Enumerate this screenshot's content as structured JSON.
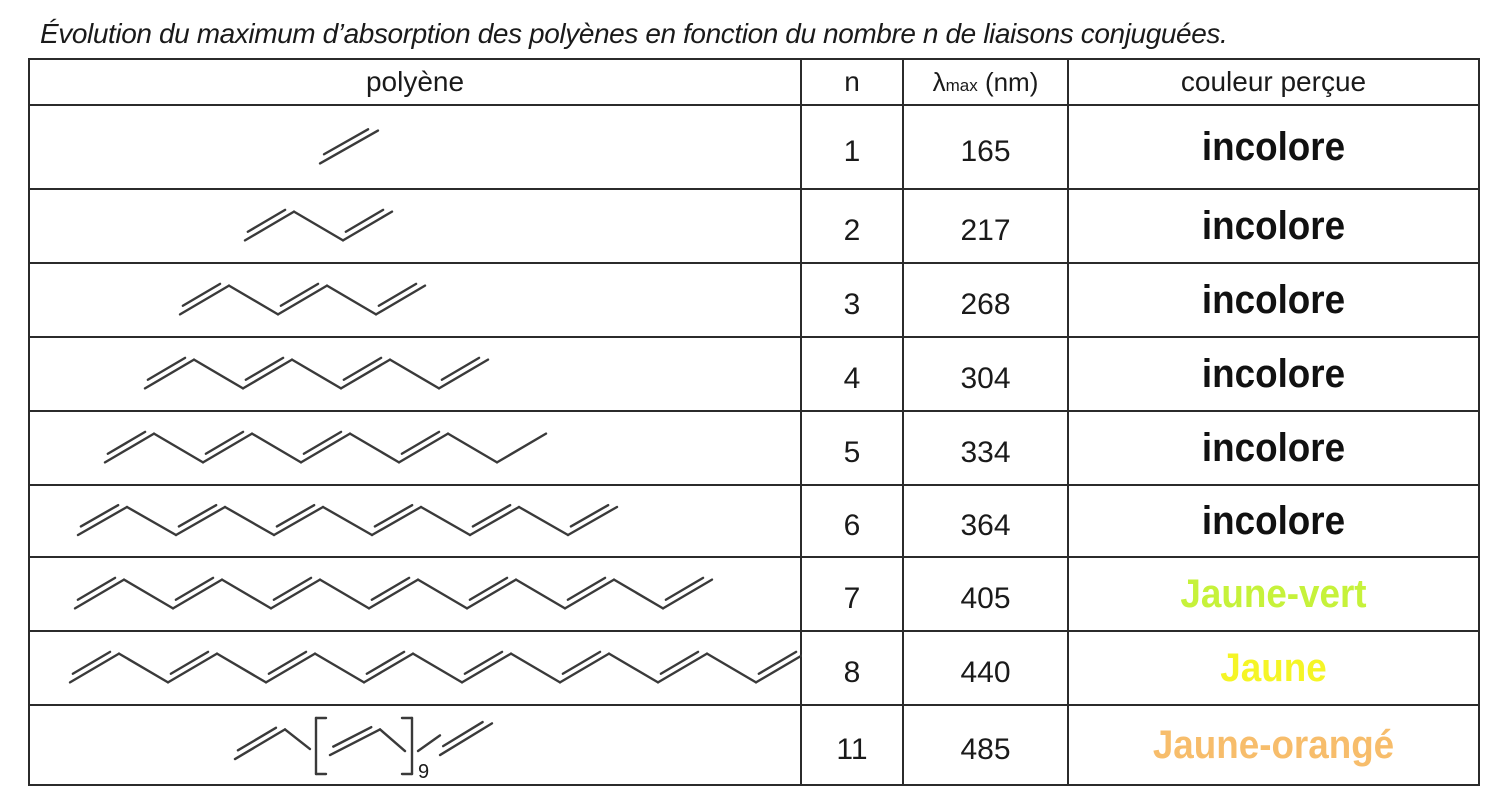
{
  "caption": "Évolution du maximum d’absorption des polyènes en fonction du nombre n de liaisons conjuguées.",
  "headers": {
    "polyene": "polyène",
    "n": "n",
    "lambda_symbol": "λ",
    "lambda_sub": "max",
    "lambda_unit": " (nm)",
    "couleur": "couleur perçue"
  },
  "rows": [
    {
      "n": "1",
      "lambda": "165",
      "couleur": "incolore",
      "color": "#111111"
    },
    {
      "n": "2",
      "lambda": "217",
      "couleur": "incolore",
      "color": "#111111"
    },
    {
      "n": "3",
      "lambda": "268",
      "couleur": "incolore",
      "color": "#111111"
    },
    {
      "n": "4",
      "lambda": "304",
      "couleur": "incolore",
      "color": "#111111"
    },
    {
      "n": "5",
      "lambda": "334",
      "couleur": "incolore",
      "color": "#111111"
    },
    {
      "n": "6",
      "lambda": "364",
      "couleur": "incolore",
      "color": "#111111"
    },
    {
      "n": "7",
      "lambda": "405",
      "couleur": "Jaune-vert",
      "color": "#c6f23a"
    },
    {
      "n": "8",
      "lambda": "440",
      "couleur": "Jaune",
      "color": "#f5f526"
    },
    {
      "n": "11",
      "lambda": "485",
      "couleur": "Jaune-orangé",
      "color": "#f7bd6b"
    }
  ],
  "repeat_subscript": "9"
}
